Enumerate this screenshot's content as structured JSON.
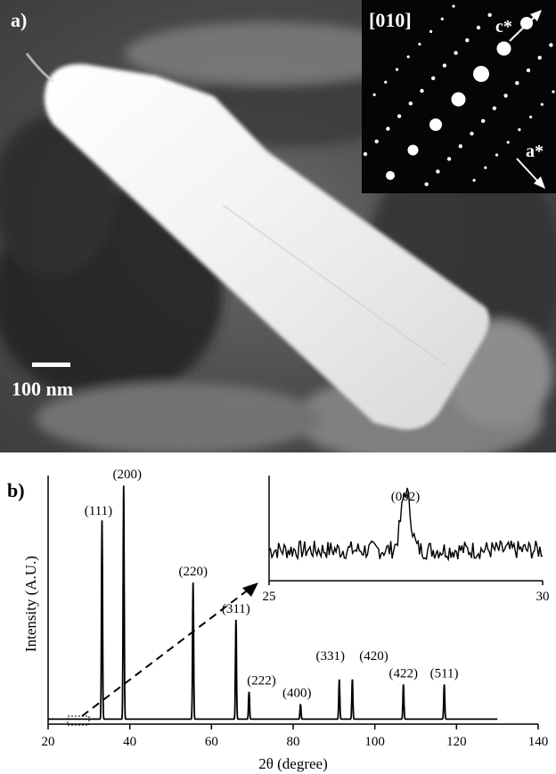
{
  "panel_a": {
    "label": "a)",
    "scale_bar_label": "100 nm",
    "inset": {
      "zone_axis": "[010]",
      "c_axis_label": "c*",
      "a_axis_label": "a*"
    }
  },
  "panel_b": {
    "label": "b)"
  },
  "chart_data": [
    {
      "type": "line",
      "xlabel": "2θ (degree)",
      "ylabel": "Intensity (A.U.)",
      "xlim": [
        20,
        140
      ],
      "xticks": [
        20,
        40,
        60,
        80,
        100,
        120,
        140
      ],
      "x_start": 20,
      "x_end": 130,
      "baseline": 2,
      "ylim": [
        0,
        100
      ],
      "peaks": [
        {
          "label": "(111)",
          "x": 33.2,
          "y": 82
        },
        {
          "label": "(200)",
          "x": 38.5,
          "y": 96
        },
        {
          "label": "(220)",
          "x": 55.5,
          "y": 57
        },
        {
          "label": "(311)",
          "x": 66.0,
          "y": 42
        },
        {
          "label": "(222)",
          "x": 69.2,
          "y": 13
        },
        {
          "label": "(400)",
          "x": 81.8,
          "y": 8
        },
        {
          "label": "(331)",
          "x": 91.3,
          "y": 18
        },
        {
          "label": "(420)",
          "x": 94.5,
          "y": 18
        },
        {
          "label": "(422)",
          "x": 107.0,
          "y": 16
        },
        {
          "label": "(511)",
          "x": 117.0,
          "y": 16
        }
      ]
    },
    {
      "type": "line",
      "title": "(002)",
      "xlim": [
        25,
        30
      ],
      "xticks": [
        25,
        30
      ],
      "noise_level": 4,
      "ylim": [
        0,
        16
      ],
      "peak": {
        "label": "(002)",
        "x": 27.5,
        "y": 14
      }
    }
  ]
}
